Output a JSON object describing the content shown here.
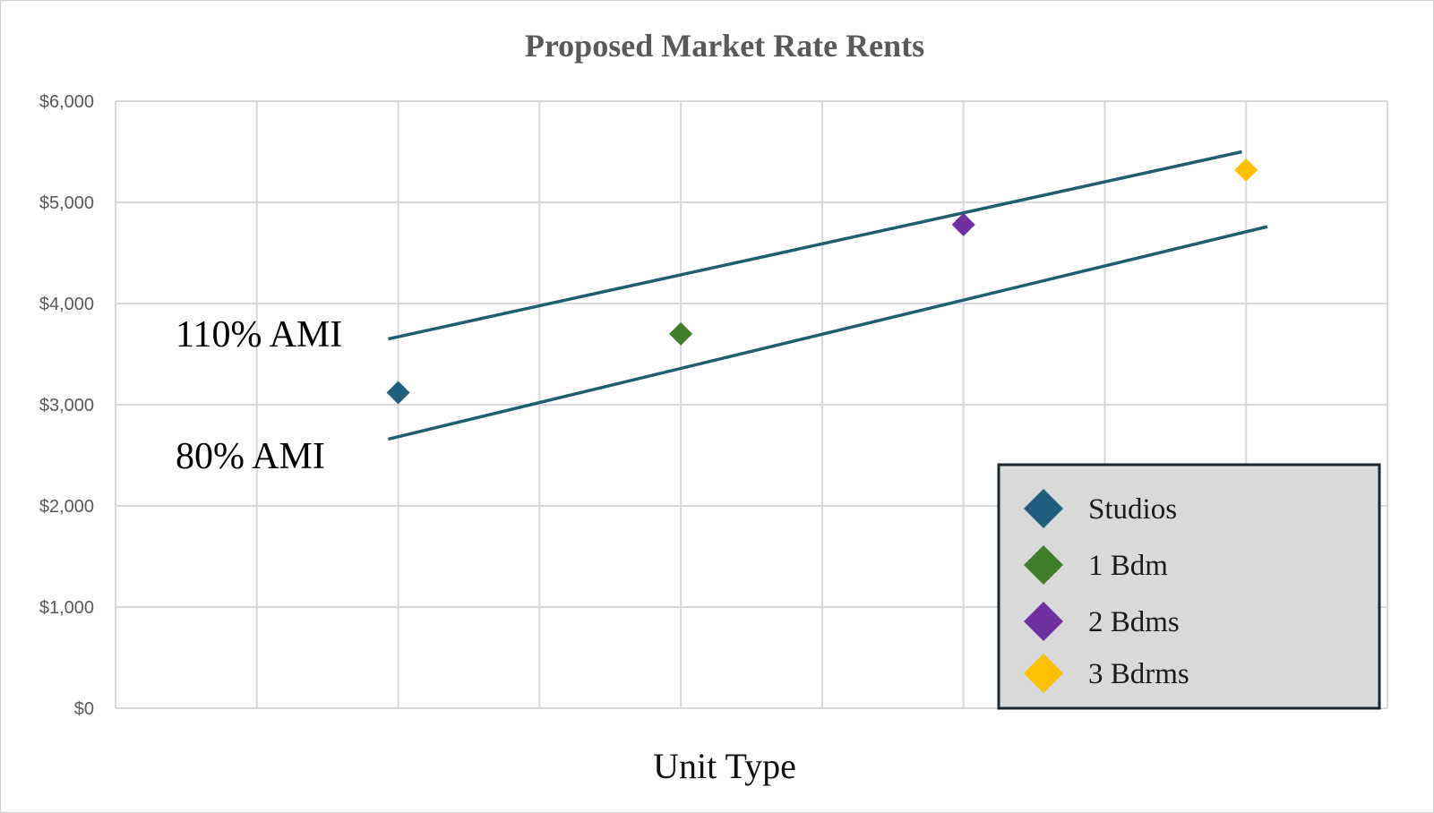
{
  "chart_data": {
    "type": "scatter",
    "title": "Proposed Market Rate Rents",
    "xlabel": "Unit Type",
    "ylabel": "",
    "ylim": [
      0,
      6000
    ],
    "yticks": [
      "$0",
      "$1,000",
      "$2,000",
      "$3,000",
      "$4,000",
      "$5,000",
      "$6,000"
    ],
    "grid": true,
    "legend_position": "bottom-right",
    "series": [
      {
        "name": "Studios",
        "x": 2,
        "y": 3120,
        "color": "#1f5f7f"
      },
      {
        "name": "1 Bdm",
        "x": 4,
        "y": 3700,
        "color": "#3f7f2a"
      },
      {
        "name": "2 Bdms",
        "x": 6,
        "y": 4780,
        "color": "#7030a0"
      },
      {
        "name": "3 Bdrms",
        "x": 8,
        "y": 5320,
        "color": "#ffc000"
      }
    ],
    "reference_lines": [
      {
        "label": "110% AMI",
        "x": [
          1.93,
          7.97
        ],
        "y": [
          3650,
          5500
        ],
        "color": "#1d5f70"
      },
      {
        "label": "80% AMI",
        "x": [
          1.93,
          8.15
        ],
        "y": [
          2660,
          4760
        ],
        "color": "#1d5f70"
      }
    ]
  }
}
